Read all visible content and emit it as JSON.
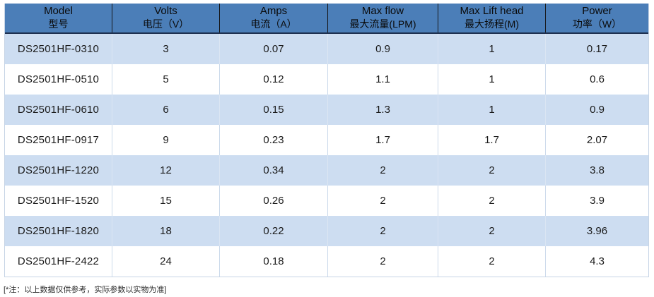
{
  "table": {
    "columns": [
      {
        "en": "Model",
        "zh": "型号"
      },
      {
        "en": "Volts",
        "zh": "电压（V）"
      },
      {
        "en": "Amps",
        "zh": "电流（A）"
      },
      {
        "en": "Max flow",
        "zh": "最大流量(LPM)"
      },
      {
        "en": "Max Lift head",
        "zh": "最大扬程(M)"
      },
      {
        "en": "Power",
        "zh": "功率（W）"
      }
    ],
    "rows": [
      [
        "DS2501HF-0310",
        "3",
        "0.07",
        "0.9",
        "1",
        "0.17"
      ],
      [
        "DS2501HF-0510",
        "5",
        "0.12",
        "1.1",
        "1",
        "0.6"
      ],
      [
        "DS2501HF-0610",
        "6",
        "0.15",
        "1.3",
        "1",
        "0.9"
      ],
      [
        "DS2501HF-0917",
        "9",
        "0.23",
        "1.7",
        "1.7",
        "2.07"
      ],
      [
        "DS2501HF-1220",
        "12",
        "0.34",
        "2",
        "2",
        "3.8"
      ],
      [
        "DS2501HF-1520",
        "15",
        "0.26",
        "2",
        "2",
        "3.9"
      ],
      [
        "DS2501HF-1820",
        "18",
        "0.22",
        "2",
        "2",
        "3.96"
      ],
      [
        "DS2501HF-2422",
        "24",
        "0.18",
        "2",
        "2",
        "4.3"
      ]
    ]
  },
  "footnote": "[*注：以上数据仅供参考，实际参数以实物为准]",
  "colors": {
    "header-bg": "#4b7eb8",
    "header-divider": "#17181c",
    "header-rule": "#1e3050",
    "stripe-bg": "#cdddf1",
    "cell-divider": "#ccdaeb",
    "cell-divider-striped": "#dbe5f3",
    "outer-border": "#c6d4e6"
  }
}
